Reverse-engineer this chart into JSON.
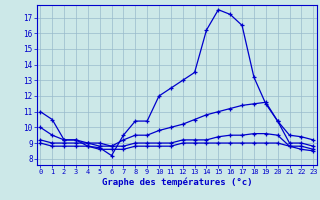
{
  "xlabel": "Graphe des températures (°c)",
  "x_ticks": [
    0,
    1,
    2,
    3,
    4,
    5,
    6,
    7,
    8,
    9,
    10,
    11,
    12,
    13,
    14,
    15,
    16,
    17,
    18,
    19,
    20,
    21,
    22,
    23
  ],
  "y_ticks": [
    8,
    9,
    10,
    11,
    12,
    13,
    14,
    15,
    16,
    17
  ],
  "ylim": [
    7.6,
    17.8
  ],
  "xlim": [
    -0.3,
    23.3
  ],
  "bg_color": "#cce8e8",
  "line_color": "#0000cc",
  "grid_color": "#99bbcc",
  "series": [
    [
      11.0,
      10.5,
      9.2,
      9.2,
      8.8,
      8.7,
      8.2,
      9.5,
      10.4,
      10.4,
      12.0,
      12.5,
      13.0,
      13.5,
      16.2,
      17.5,
      17.2,
      16.5,
      13.2,
      11.5,
      10.4,
      9.0,
      9.0,
      8.8
    ],
    [
      10.0,
      9.5,
      9.2,
      9.2,
      9.0,
      9.0,
      8.8,
      9.2,
      9.5,
      9.5,
      9.8,
      10.0,
      10.2,
      10.5,
      10.8,
      11.0,
      11.2,
      11.4,
      11.5,
      11.6,
      10.4,
      9.5,
      9.4,
      9.2
    ],
    [
      9.2,
      9.0,
      9.0,
      9.0,
      9.0,
      8.8,
      8.8,
      8.8,
      9.0,
      9.0,
      9.0,
      9.0,
      9.2,
      9.2,
      9.2,
      9.4,
      9.5,
      9.5,
      9.6,
      9.6,
      9.5,
      8.8,
      8.8,
      8.6
    ],
    [
      9.0,
      8.8,
      8.8,
      8.8,
      8.8,
      8.6,
      8.6,
      8.6,
      8.8,
      8.8,
      8.8,
      8.8,
      9.0,
      9.0,
      9.0,
      9.0,
      9.0,
      9.0,
      9.0,
      9.0,
      9.0,
      8.8,
      8.6,
      8.5
    ]
  ]
}
